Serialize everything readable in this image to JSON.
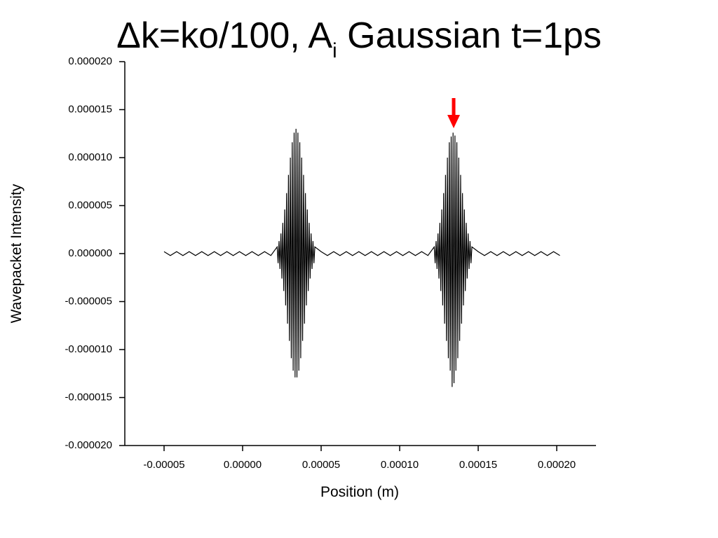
{
  "chart_data": {
    "type": "line",
    "title": "Δk=ko/100, A",
    "title_subscript": "i",
    "title_rest": " Gaussian t=1ps",
    "x_label": "Position (m)",
    "y_label": "Wavepacket Intensity",
    "xlim": [
      -7.5e-05,
      0.000225
    ],
    "ylim": [
      -2e-05,
      2e-05
    ],
    "xticks": [
      -5e-05,
      {
        "value": 0,
        "label": "0.00000"
      },
      5e-05,
      {
        "value": 0.0001,
        "label": "0.00010"
      },
      {
        "value": 0.00015,
        "label": "0.00015"
      },
      {
        "value": 0.0002,
        "label": "0.00020"
      }
    ],
    "yticks": [
      {
        "value": -2e-05,
        "label": "-0.000020"
      },
      {
        "value": -1.5e-05,
        "label": "-0.000015"
      },
      {
        "value": -1e-05,
        "label": "-0.000010"
      },
      -5e-06,
      {
        "value": 0,
        "label": "0.000000"
      },
      5e-06,
      {
        "value": 1e-05,
        "label": "0.000010"
      },
      {
        "value": 1.5e-05,
        "label": "0.000015"
      },
      {
        "value": 2e-05,
        "label": "0.000020"
      }
    ],
    "series": [
      {
        "color": "#000000",
        "x": [
          -5e-05,
          -4.6e-05,
          -4.2e-05,
          -3.8e-05,
          -3.4e-05,
          -3e-05,
          -2.6e-05,
          -2.2e-05,
          -1.8e-05,
          -1.4e-05,
          -1e-05,
          -6e-06,
          -2e-06,
          2e-06,
          6e-06,
          1e-05,
          1.4e-05,
          1.8e-05,
          2.2e-05,
          2.26e-05,
          2.32e-05,
          2.38e-05,
          2.44e-05,
          2.5e-05,
          2.56e-05,
          2.62e-05,
          2.68e-05,
          2.74e-05,
          2.8e-05,
          2.86e-05,
          2.92e-05,
          2.98e-05,
          3.04e-05,
          3.1e-05,
          3.16e-05,
          3.22e-05,
          3.28e-05,
          3.34e-05,
          3.4e-05,
          3.46e-05,
          3.52e-05,
          3.58e-05,
          3.64e-05,
          3.7e-05,
          3.76e-05,
          3.82e-05,
          3.88e-05,
          3.94e-05,
          4e-05,
          4.06e-05,
          4.12e-05,
          4.18e-05,
          4.24e-05,
          4.3e-05,
          4.36e-05,
          4.42e-05,
          4.48e-05,
          4.54e-05,
          4.6e-05,
          5e-05,
          5.4e-05,
          5.8e-05,
          6.2e-05,
          6.6e-05,
          7e-05,
          7.4e-05,
          7.8e-05,
          8.2e-05,
          8.6e-05,
          9e-05,
          9.4e-05,
          9.8e-05,
          0.000102,
          0.000106,
          0.00011,
          0.000114,
          0.000118,
          0.000122,
          0.0001226,
          0.0001232,
          0.0001238,
          0.0001244,
          0.000125,
          0.0001256,
          0.0001262,
          0.0001268,
          0.0001274,
          0.000128,
          0.0001286,
          0.0001292,
          0.0001298,
          0.0001304,
          0.000131,
          0.0001316,
          0.0001322,
          0.0001328,
          0.0001334,
          0.000134,
          0.0001346,
          0.0001352,
          0.0001358,
          0.0001364,
          0.000137,
          0.0001376,
          0.0001382,
          0.0001388,
          0.0001394,
          0.00014,
          0.0001406,
          0.0001412,
          0.0001418,
          0.0001424,
          0.000143,
          0.0001436,
          0.0001442,
          0.0001448,
          0.0001454,
          0.000146,
          0.00015,
          0.000154,
          0.000158,
          0.000162,
          0.000166,
          0.00017,
          0.000174,
          0.000178,
          0.000182,
          0.000186,
          0.00019,
          0.000194,
          0.000198,
          0.000202
        ],
        "values": [
          2e-07,
          -2e-07,
          2e-07,
          -2e-07,
          2e-07,
          -2e-07,
          2e-07,
          -2e-07,
          2e-07,
          -2e-07,
          2e-07,
          -2e-07,
          2e-07,
          -2e-07,
          2e-07,
          -2e-07,
          2e-07,
          -2e-07,
          7e-07,
          -1e-06,
          1.3e-06,
          -1.6e-06,
          2.1e-06,
          -2.6e-06,
          3.2e-06,
          -3.9e-06,
          4.6e-06,
          -5.4e-06,
          6.3e-06,
          -7.3e-06,
          8.2e-06,
          -9.1e-06,
          1e-05,
          -1.09e-05,
          1.16e-05,
          -1.22e-05,
          1.26e-05,
          -1.29e-05,
          1.3e-05,
          -1.29e-05,
          1.26e-05,
          -1.22e-05,
          1.16e-05,
          -1.09e-05,
          1e-05,
          -9.1e-06,
          8.2e-06,
          -7.3e-06,
          6.3e-06,
          -5.4e-06,
          4.6e-06,
          -3.9e-06,
          3.2e-06,
          -2.6e-06,
          2.1e-06,
          -1.6e-06,
          1.3e-06,
          -1e-06,
          7e-07,
          2e-07,
          -2e-07,
          2e-07,
          -2e-07,
          2e-07,
          -2e-07,
          2e-07,
          -2e-07,
          2e-07,
          -2e-07,
          2e-07,
          -2e-07,
          2e-07,
          -2e-07,
          2e-07,
          -2e-07,
          2e-07,
          -2e-07,
          7e-07,
          -1e-06,
          1.3e-06,
          -1.6e-06,
          2.1e-06,
          -2.6e-06,
          3.2e-06,
          -3.9e-06,
          4.6e-06,
          -5.4e-06,
          6.3e-06,
          -7.3e-06,
          8.2e-06,
          -9.1e-06,
          1e-05,
          -1.09e-05,
          1.16e-05,
          -1.22e-05,
          1.22e-05,
          -1.39e-05,
          1.26e-05,
          -1.35e-05,
          1.23e-05,
          -1.22e-05,
          1.16e-05,
          -1.09e-05,
          1e-05,
          -9.1e-06,
          8.2e-06,
          -7.3e-06,
          6.3e-06,
          -5.4e-06,
          4.6e-06,
          -3.9e-06,
          3.2e-06,
          -2.6e-06,
          2.1e-06,
          -1.6e-06,
          1.3e-06,
          -1e-06,
          7e-07,
          2e-07,
          -2e-07,
          2e-07,
          -2e-07,
          2e-07,
          -2e-07,
          2e-07,
          -2e-07,
          2e-07,
          -2e-07,
          2e-07,
          -2e-07,
          2e-07,
          -2e-07
        ]
      }
    ]
  }
}
